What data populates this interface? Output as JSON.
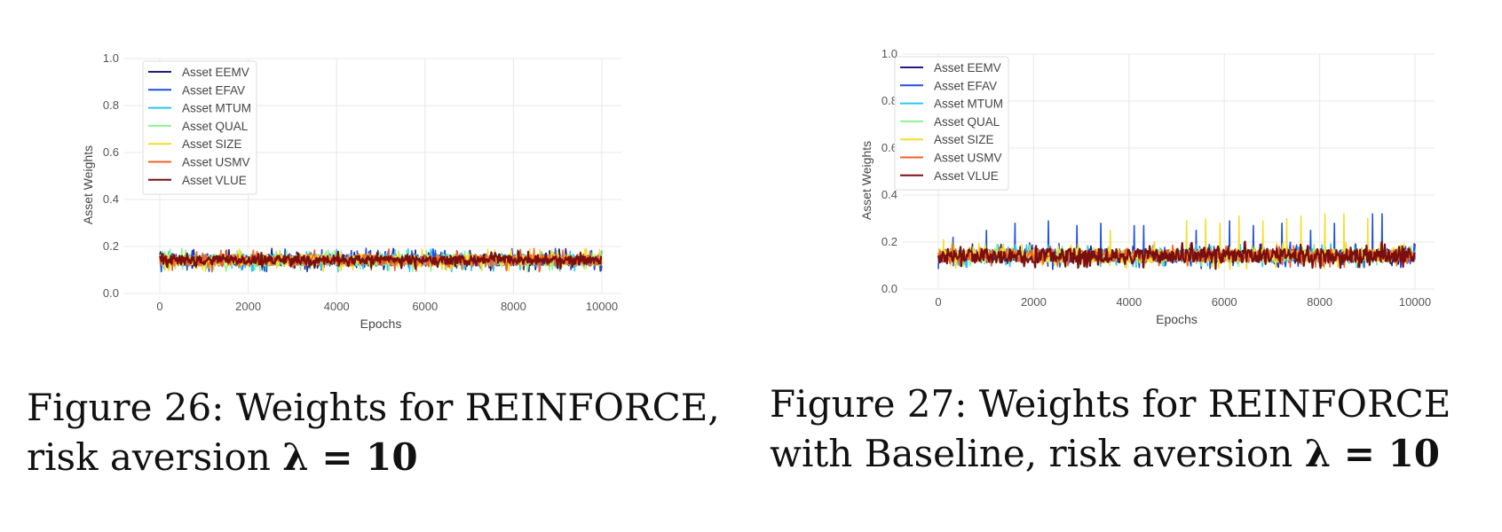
{
  "chart_data": [
    {
      "type": "line",
      "title": "",
      "xlabel": "Epochs",
      "ylabel": "Asset Weights",
      "xlim": [
        0,
        10000
      ],
      "ylim": [
        0,
        1.0
      ],
      "xticks": [
        0,
        2000,
        4000,
        6000,
        8000,
        10000
      ],
      "xtick_labels": [
        "0",
        "2000",
        "4000",
        "6000",
        "8000",
        "10000"
      ],
      "yticks": [
        0,
        0.2,
        0.4,
        0.6,
        0.8,
        1.0
      ],
      "ytick_labels": [
        "0.0",
        "0.2",
        "0.4",
        "0.6",
        "0.8",
        "1.0"
      ],
      "grid": true,
      "legend_position": "top-left",
      "series": [
        {
          "name": "Asset EEMV",
          "color": "#1f1f7a",
          "base": 0.142,
          "noise": 0.025,
          "seed": 11
        },
        {
          "name": "Asset EFAV",
          "color": "#1f4fe0",
          "base": 0.142,
          "noise": 0.025,
          "seed": 23
        },
        {
          "name": "Asset MTUM",
          "color": "#29c8f2",
          "base": 0.142,
          "noise": 0.025,
          "seed": 37
        },
        {
          "name": "Asset QUAL",
          "color": "#8ef28e",
          "base": 0.142,
          "noise": 0.025,
          "seed": 41
        },
        {
          "name": "Asset SIZE",
          "color": "#f5dd2a",
          "base": 0.142,
          "noise": 0.025,
          "seed": 53
        },
        {
          "name": "Asset USMV",
          "color": "#f0622d",
          "base": 0.142,
          "noise": 0.025,
          "seed": 67
        },
        {
          "name": "Asset VLUE",
          "color": "#7a0f0f",
          "base": 0.142,
          "noise": 0.018,
          "seed": 79
        }
      ]
    },
    {
      "type": "line",
      "title": "",
      "xlabel": "Epochs",
      "ylabel": "Asset Weights",
      "xlim": [
        0,
        10000
      ],
      "ylim": [
        0,
        1.0
      ],
      "xticks": [
        0,
        2000,
        4000,
        6000,
        8000,
        10000
      ],
      "xtick_labels": [
        "0",
        "2000",
        "4000",
        "6000",
        "8000",
        "10000"
      ],
      "yticks": [
        0,
        0.2,
        0.4,
        0.6,
        0.8,
        1.0
      ],
      "ytick_labels": [
        "0.0",
        "0.2",
        "0.4",
        "0.6",
        "0.8",
        "1.0"
      ],
      "grid": true,
      "legend_position": "top-left",
      "series": [
        {
          "name": "Asset EEMV",
          "color": "#1f1f7a",
          "base": 0.142,
          "noise": 0.025,
          "seed": 13
        },
        {
          "name": "Asset EFAV",
          "color": "#1f4fe0",
          "base": 0.142,
          "noise": 0.03,
          "seed": 29,
          "spikes": [
            [
              300,
              0.22
            ],
            [
              1000,
              0.25
            ],
            [
              1600,
              0.28
            ],
            [
              2300,
              0.29
            ],
            [
              2900,
              0.27
            ],
            [
              3400,
              0.28
            ],
            [
              4100,
              0.27
            ],
            [
              4300,
              0.27
            ],
            [
              5400,
              0.25
            ],
            [
              6100,
              0.29
            ],
            [
              6600,
              0.27
            ],
            [
              7200,
              0.28
            ],
            [
              7800,
              0.25
            ],
            [
              8300,
              0.28
            ],
            [
              9100,
              0.32
            ],
            [
              9300,
              0.32
            ]
          ]
        },
        {
          "name": "Asset MTUM",
          "color": "#29c8f2",
          "base": 0.142,
          "noise": 0.025,
          "seed": 31
        },
        {
          "name": "Asset QUAL",
          "color": "#8ef28e",
          "base": 0.142,
          "noise": 0.025,
          "seed": 43
        },
        {
          "name": "Asset SIZE",
          "color": "#f5dd2a",
          "base": 0.142,
          "noise": 0.03,
          "seed": 59,
          "spikes": [
            [
              100,
              0.21
            ],
            [
              3600,
              0.25
            ],
            [
              5200,
              0.29
            ],
            [
              5600,
              0.3
            ],
            [
              5900,
              0.28
            ],
            [
              6300,
              0.31
            ],
            [
              6800,
              0.29
            ],
            [
              7300,
              0.3
            ],
            [
              7600,
              0.31
            ],
            [
              8100,
              0.32
            ],
            [
              8500,
              0.32
            ],
            [
              9000,
              0.3
            ]
          ]
        },
        {
          "name": "Asset USMV",
          "color": "#f0622d",
          "base": 0.142,
          "noise": 0.025,
          "seed": 71
        },
        {
          "name": "Asset VLUE",
          "color": "#7a0f0f",
          "base": 0.142,
          "noise": 0.03,
          "seed": 83
        }
      ]
    }
  ],
  "captions": [
    {
      "prefix": "Figure 26:",
      "line1": "Weights for REINFORCE,",
      "line2": "risk aversion",
      "math": "λ = 10"
    },
    {
      "prefix": "Figure 27:",
      "line1": "Weights for REINFORCE",
      "line2": "with Baseline, risk aversion",
      "math": "λ = 10"
    }
  ]
}
